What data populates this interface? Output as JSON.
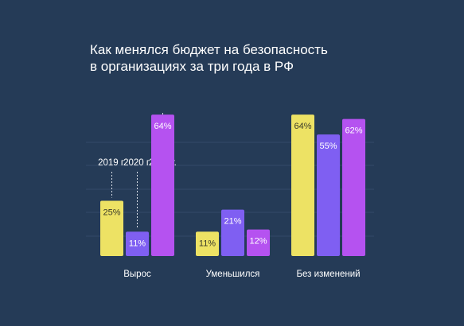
{
  "chart_data": {
    "type": "bar",
    "title": [
      "Как менялся бюджет на безопасность",
      "в организациях за три года в РФ"
    ],
    "categories": [
      "Вырос",
      "Уменьшился",
      "Без изменений"
    ],
    "series": [
      {
        "name": "2019 г.",
        "color": "#ede264",
        "values": [
          25,
          11,
          64
        ]
      },
      {
        "name": "2020 г.",
        "color": "#7f5ff2",
        "values": [
          11,
          21,
          55
        ]
      },
      {
        "name": "2021 г.",
        "color": "#b552f0",
        "values": [
          64,
          12,
          62
        ]
      }
    ],
    "value_labels": [
      [
        "25%",
        "11%",
        "64%"
      ],
      [
        "11%",
        "21%",
        "55%"
      ],
      [
        "64%",
        "12%",
        "62%"
      ]
    ],
    "legend_placement": "above first group",
    "grid": true
  }
}
